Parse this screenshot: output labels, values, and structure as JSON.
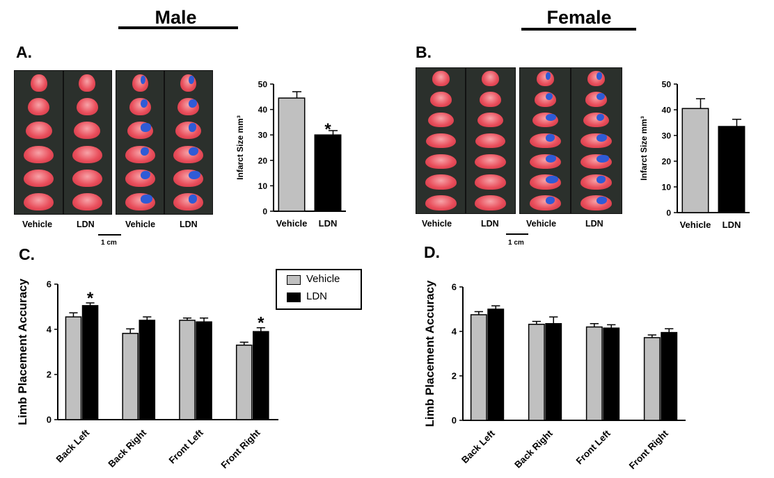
{
  "headers": {
    "male": "Male",
    "female": "Female"
  },
  "panels": {
    "a": "A.",
    "b": "B.",
    "c": "C.",
    "d": "D."
  },
  "photo_labels": {
    "male": [
      "Vehicle",
      "LDN",
      "Vehicle",
      "LDN"
    ],
    "female": [
      "Vehicle",
      "LDN",
      "Vehicle",
      "LDN"
    ]
  },
  "scale": {
    "male": "1 cm",
    "female": "1 cm"
  },
  "legend": {
    "vehicle": "Vehicle",
    "ldn": "LDN"
  },
  "colors": {
    "vehicle": "#c0c0c0",
    "ldn": "#000000",
    "lesion": "#2f5bd6"
  },
  "chart_data": [
    {
      "id": "infarct-male",
      "type": "bar",
      "categories": [
        "Vehicle",
        "LDN"
      ],
      "values": [
        44.5,
        30.0
      ],
      "errors": [
        2.5,
        1.7
      ],
      "significance": [
        "",
        "*"
      ],
      "ylabel": "Infarct Size mm³",
      "ylim": [
        0,
        50
      ],
      "yticks": [
        0,
        10,
        20,
        30,
        40,
        50
      ]
    },
    {
      "id": "infarct-female",
      "type": "bar",
      "categories": [
        "Vehicle",
        "LDN"
      ],
      "values": [
        40.5,
        33.5
      ],
      "errors": [
        3.8,
        2.8
      ],
      "significance": [
        "",
        ""
      ],
      "ylabel": "Infarct Size mm³",
      "ylim": [
        0,
        50
      ],
      "yticks": [
        0,
        10,
        20,
        30,
        40,
        50
      ]
    },
    {
      "id": "limb-male",
      "type": "bar",
      "categories": [
        "Back Left",
        "Back Right",
        "Front Left",
        "Front Right"
      ],
      "series": [
        {
          "name": "Vehicle",
          "values": [
            4.55,
            3.82,
            4.4,
            3.3
          ],
          "errors": [
            0.18,
            0.2,
            0.1,
            0.13
          ]
        },
        {
          "name": "LDN",
          "values": [
            5.05,
            4.4,
            4.33,
            3.9
          ],
          "errors": [
            0.12,
            0.15,
            0.17,
            0.17
          ]
        }
      ],
      "significance": {
        "LDN": [
          "*",
          "",
          "",
          "*"
        ]
      },
      "ylabel": "Limb Placement Accuracy",
      "ylim": [
        0,
        6
      ],
      "yticks": [
        0,
        2,
        4,
        6
      ]
    },
    {
      "id": "limb-female",
      "type": "bar",
      "categories": [
        "Back Left",
        "Back Right",
        "Front Left",
        "Front Right"
      ],
      "series": [
        {
          "name": "Vehicle",
          "values": [
            4.75,
            4.32,
            4.2,
            3.72
          ],
          "errors": [
            0.14,
            0.13,
            0.15,
            0.12
          ]
        },
        {
          "name": "LDN",
          "values": [
            5.0,
            4.35,
            4.15,
            3.95
          ],
          "errors": [
            0.15,
            0.3,
            0.15,
            0.17
          ]
        }
      ],
      "significance": {
        "LDN": [
          "",
          "",
          "",
          ""
        ]
      },
      "ylabel": "Limb Placement Accuracy",
      "ylim": [
        0,
        6
      ],
      "yticks": [
        0,
        2,
        4,
        6
      ]
    }
  ]
}
